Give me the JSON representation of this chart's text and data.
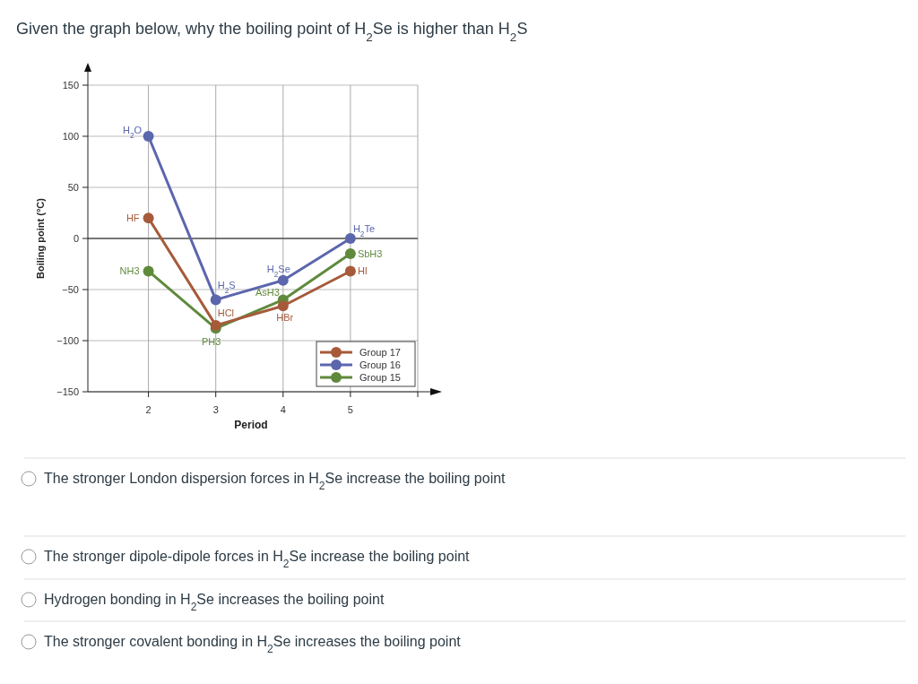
{
  "chart_data": {
    "type": "line",
    "title": "Given the graph below, why the boiling point of H$_{2}$Se is higher than H$_{2}$S",
    "xlabel": "Period",
    "ylabel": "Boiling point (°C)",
    "x": [
      2,
      3,
      4,
      5
    ],
    "series": [
      {
        "name": "Group 17",
        "color": "#a65a3a",
        "values": [
          20,
          -85,
          -66,
          -32
        ]
      },
      {
        "name": "Group 16",
        "color": "#5b66ad",
        "values": [
          100,
          -60,
          -41,
          0
        ]
      },
      {
        "name": "Group 15",
        "color": "#5f8a3c",
        "values": [
          -32,
          -88,
          -60,
          -15
        ]
      }
    ],
    "xlim": [
      1.1,
      6
    ],
    "xticks": [
      2,
      3,
      4,
      5,
      {
        "value": 6,
        "label": null
      }
    ],
    "ylim": [
      -150,
      150
    ],
    "yticks": [
      -150,
      -100,
      -50,
      0,
      50,
      100,
      150
    ],
    "grid": true,
    "legend": "bottom right",
    "marker": "circle",
    "line_style": "solid",
    "ref_lines": [
      {
        "axis": "y",
        "value": 0,
        "color": "#555555"
      }
    ],
    "annotations": [
      {
        "text": "H$_{2}$O",
        "x": 2,
        "y": 100
      },
      {
        "text": "HF",
        "x": 2,
        "y": 20
      },
      {
        "text": "NH3",
        "x": 2,
        "y": -32
      },
      {
        "text": "H$_{2}$S",
        "x": 3,
        "y": -60
      },
      {
        "text": "HCl",
        "x": 3,
        "y": -85
      },
      {
        "text": "PH3",
        "x": 3,
        "y": -88
      },
      {
        "text": "H$_{2}$Se",
        "x": 4,
        "y": -41
      },
      {
        "text": "AsH3",
        "x": 4,
        "y": -60
      },
      {
        "text": "HBr",
        "x": 4,
        "y": -66
      },
      {
        "text": "H$_{2}$Te",
        "x": 5,
        "y": 0
      },
      {
        "text": "SbH3",
        "x": 5,
        "y": -15
      },
      {
        "text": "HI",
        "x": 5,
        "y": -32
      },
      "The stronger London dispersion forces in H$_{2}$Se increase the boiling point",
      "The stronger dipole-dipole forces in H$_{2}$Se increase the boiling point",
      "Hydrogen bonding in H$_{2}$Se increases the boiling point",
      "The stronger covalent bonding in H$_{2}$Se  increases the boiling point"
    ]
  }
}
